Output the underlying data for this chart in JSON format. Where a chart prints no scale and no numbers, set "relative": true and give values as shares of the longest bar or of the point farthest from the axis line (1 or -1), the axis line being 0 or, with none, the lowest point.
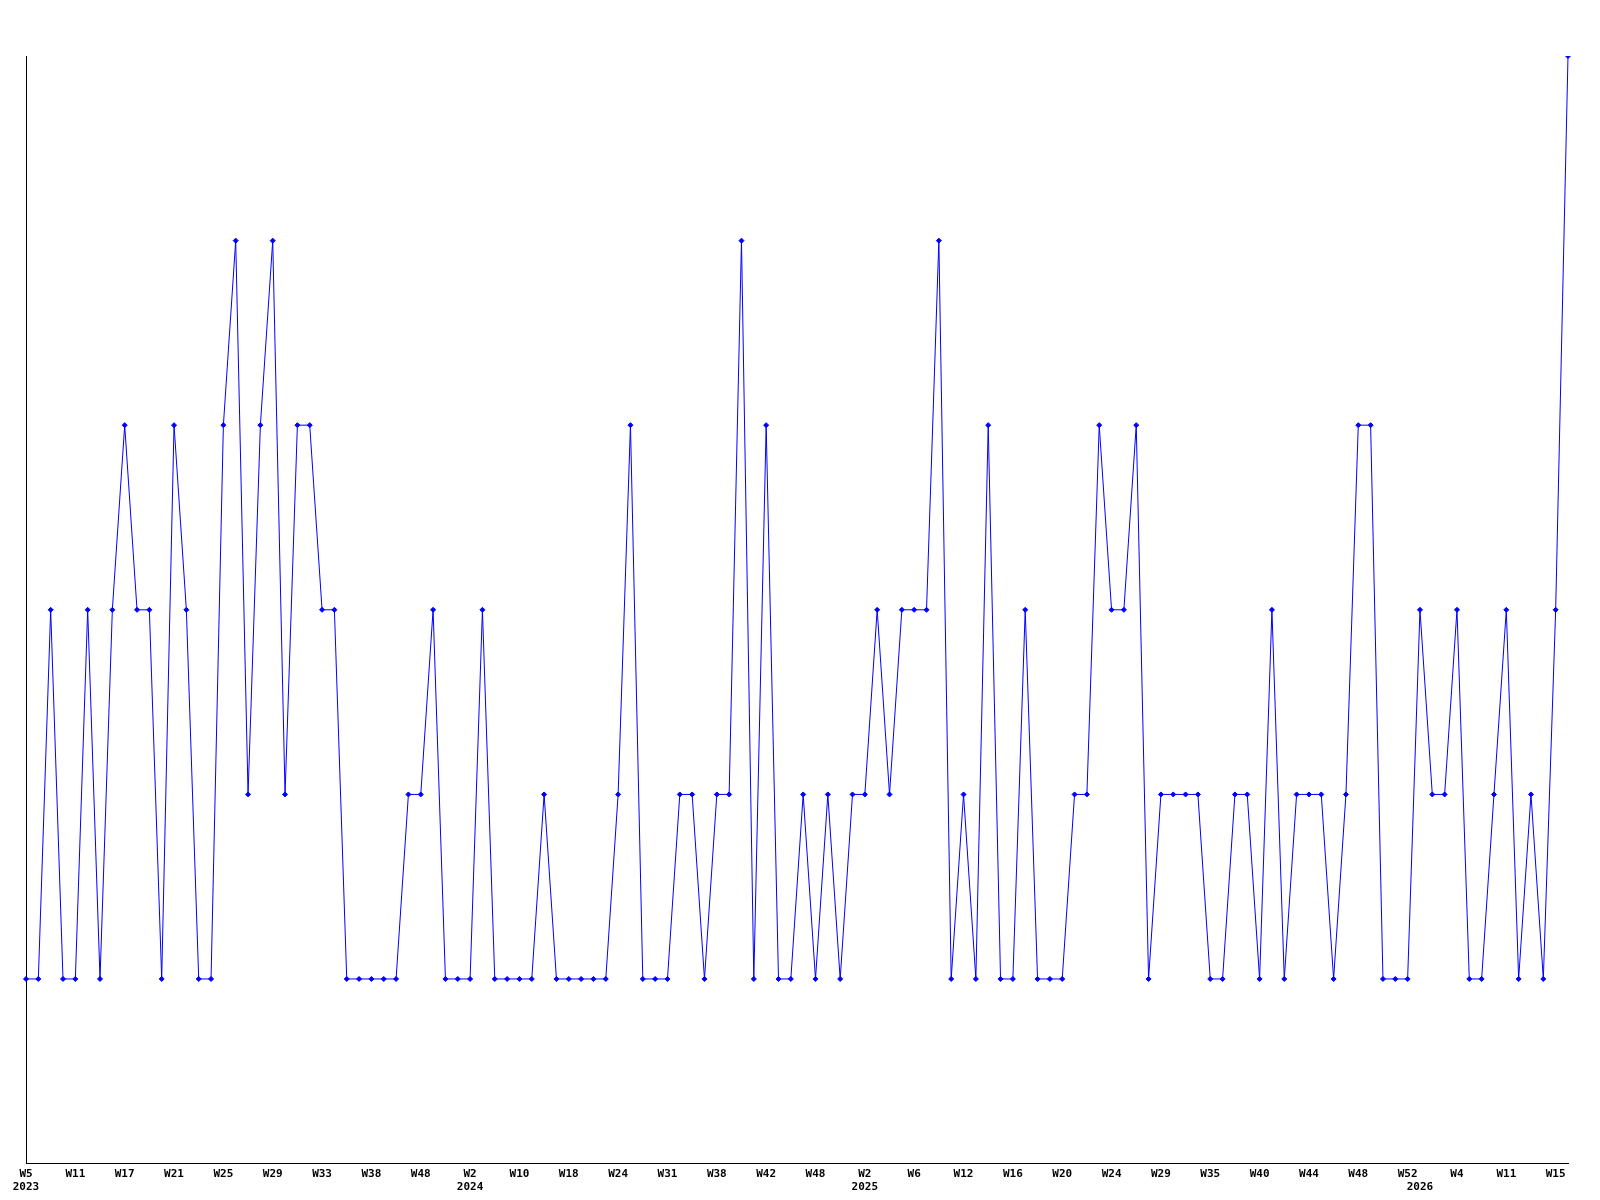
{
  "chart_data": {
    "type": "line",
    "relative": true,
    "color": "#0000ff",
    "marker": "diamond",
    "grid": false,
    "legend": false,
    "categories": [
      "W5\n2023",
      null,
      null,
      null,
      "W11",
      null,
      null,
      null,
      "W17",
      null,
      null,
      null,
      "W21",
      null,
      null,
      null,
      "W25",
      null,
      null,
      null,
      "W29",
      null,
      null,
      null,
      "W33",
      null,
      null,
      null,
      "W38",
      null,
      null,
      null,
      "W48",
      null,
      null,
      null,
      "W2\n2024",
      null,
      null,
      null,
      "W10",
      null,
      null,
      null,
      "W18",
      null,
      null,
      null,
      "W24",
      null,
      null,
      null,
      "W31",
      null,
      null,
      null,
      "W38",
      null,
      null,
      null,
      "W42",
      null,
      null,
      null,
      "W48",
      null,
      null,
      null,
      "W2\n2025",
      null,
      null,
      null,
      "W6",
      null,
      null,
      null,
      "W12",
      null,
      null,
      null,
      "W16",
      null,
      null,
      null,
      "W20",
      null,
      null,
      null,
      "W24",
      null,
      null,
      null,
      "W29",
      null,
      null,
      null,
      "W35",
      null,
      null,
      null,
      "W40",
      null,
      null,
      null,
      "W44",
      null,
      null,
      null,
      "W48",
      null,
      null,
      null,
      "W52",
      "\n2026",
      null,
      null,
      "W4",
      null,
      null,
      null,
      "W11",
      null,
      null,
      null,
      "W15",
      null
    ],
    "values": [
      0.1667,
      0.1667,
      0.5,
      0.1667,
      0.1667,
      0.5,
      0.1667,
      0.5,
      0.6667,
      0.5,
      0.5,
      0.1667,
      0.6667,
      0.5,
      0.1667,
      0.1667,
      0.6667,
      0.8333,
      0.3333,
      0.6667,
      0.8333,
      0.3333,
      0.6667,
      0.6667,
      0.5,
      0.5,
      0.1667,
      0.1667,
      0.1667,
      0.1667,
      0.1667,
      0.3333,
      0.3333,
      0.5,
      0.1667,
      0.1667,
      0.1667,
      0.5,
      0.1667,
      0.1667,
      0.1667,
      0.1667,
      0.3333,
      0.1667,
      0.1667,
      0.1667,
      0.1667,
      0.1667,
      0.3333,
      0.6667,
      0.1667,
      0.1667,
      0.1667,
      0.3333,
      0.3333,
      0.1667,
      0.3333,
      0.3333,
      0.8333,
      0.1667,
      0.6667,
      0.1667,
      0.1667,
      0.3333,
      0.1667,
      0.3333,
      0.1667,
      0.3333,
      0.3333,
      0.5,
      0.3333,
      0.5,
      0.5,
      0.5,
      0.8333,
      0.1667,
      0.3333,
      0.1667,
      0.6667,
      0.1667,
      0.1667,
      0.5,
      0.1667,
      0.1667,
      0.1667,
      0.3333,
      0.3333,
      0.6667,
      0.5,
      0.5,
      0.6667,
      0.1667,
      0.3333,
      0.3333,
      0.3333,
      0.3333,
      0.1667,
      0.1667,
      0.3333,
      0.3333,
      0.1667,
      0.5,
      0.1667,
      0.3333,
      0.3333,
      0.3333,
      0.1667,
      0.3333,
      0.6667,
      0.6667,
      0.1667,
      0.1667,
      0.1667,
      0.5,
      0.3333,
      0.3333,
      0.5,
      0.1667,
      0.1667,
      0.3333,
      0.5,
      0.1667,
      0.3333,
      0.1667,
      0.5,
      1
    ]
  }
}
